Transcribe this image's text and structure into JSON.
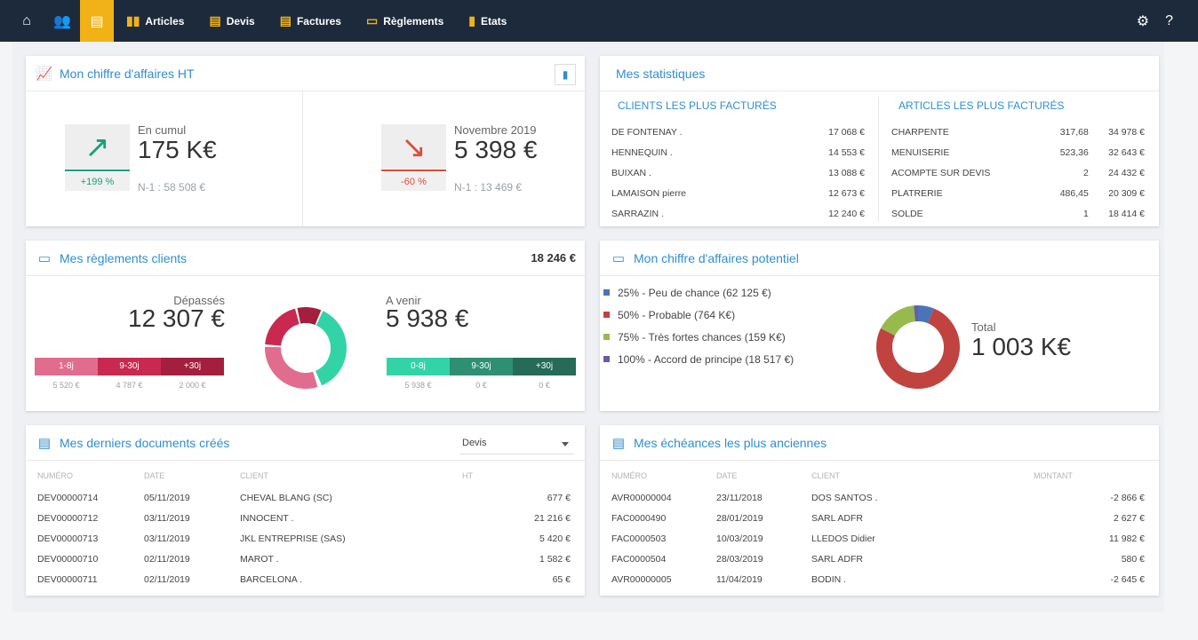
{
  "nav": {
    "articles": "Articles",
    "devis": "Devis",
    "factures": "Factures",
    "reglements": "Règlements",
    "etats": "Etats"
  },
  "ca": {
    "title": "Mon chiffre d'affaires HT",
    "left": {
      "label": "En cumul",
      "value": "175 K€",
      "pct": "+199 %",
      "n1": "N-1 : 58 508 €"
    },
    "right": {
      "label": "Novembre 2019",
      "value": "5 398 €",
      "pct": "-60 %",
      "n1": "N-1 : 13 469 €"
    },
    "accent_up": "#1aa07a",
    "accent_down": "#e04b3a"
  },
  "stats": {
    "title": "Mes statistiques",
    "clients_title": "CLIENTS LES PLUS FACTURÉS",
    "articles_title": "ARTICLES LES PLUS FACTURÉS",
    "clients": [
      [
        "DE FONTENAY .",
        "17 068 €"
      ],
      [
        "HENNEQUIN .",
        "14 553 €"
      ],
      [
        "BUIXAN .",
        "13 088 €"
      ],
      [
        "LAMAISON pierre",
        "12 673 €"
      ],
      [
        "SARRAZIN .",
        "12 240 €"
      ]
    ],
    "articles": [
      [
        "CHARPENTE",
        "317,68",
        "34 978 €"
      ],
      [
        "MENUISERIE",
        "523,36",
        "32 643 €"
      ],
      [
        "ACOMPTE SUR DEVIS",
        "2",
        "24 432 €"
      ],
      [
        "PLATRERIE",
        "486,45",
        "20 309 €"
      ],
      [
        "SOLDE",
        "1",
        "18 414 €"
      ]
    ]
  },
  "reg": {
    "title": "Mes règlements clients",
    "total": "18 246 €",
    "depasses_label": "Dépassés",
    "depasses_value": "12 307 €",
    "avenir_label": "A venir",
    "avenir_value": "5 938 €",
    "dep_seg": [
      "1-8j",
      "9-30j",
      "+30j"
    ],
    "dep_vals": [
      "5 520 €",
      "4 787 €",
      "2 000 €"
    ],
    "av_seg": [
      "0-8j",
      "9-30j",
      "+30j"
    ],
    "av_vals": [
      "5 938 €",
      "0 €",
      "0 €"
    ]
  },
  "pot": {
    "title": "Mon chiffre d'affaires potentiel",
    "total_label": "Total",
    "total_value": "1 003 K€",
    "legend": [
      {
        "text": "25% - Peu de chance (62 125 €)",
        "color": "#4a74b8",
        "value": 62125
      },
      {
        "text": "50% - Probable (764 K€)",
        "color": "#c0433f",
        "value": 764000
      },
      {
        "text": "75% - Très fortes chances (159 K€)",
        "color": "#96bb4c",
        "value": 159000
      },
      {
        "text": "100% - Accord de principe (18 517 €)",
        "color": "#6c5aa6",
        "value": 18517
      }
    ]
  },
  "docs": {
    "title": "Mes derniers documents créés",
    "select": "Devis",
    "cols": [
      "NUMÉRO",
      "DATE",
      "CLIENT",
      "HT"
    ],
    "rows": [
      [
        "DEV00000714",
        "05/11/2019",
        "CHEVAL BLANG (SC)",
        "677 €"
      ],
      [
        "DEV00000712",
        "03/11/2019",
        "INNOCENT .",
        "21 216 €"
      ],
      [
        "DEV00000713",
        "03/11/2019",
        "JKL ENTREPRISE (SAS)",
        "5 420 €"
      ],
      [
        "DEV00000710",
        "02/11/2019",
        "MAROT .",
        "1 582 €"
      ],
      [
        "DEV00000711",
        "02/11/2019",
        "BARCELONA .",
        "65 €"
      ]
    ]
  },
  "ech": {
    "title": "Mes échéances les plus anciennes",
    "cols": [
      "NUMÉRO",
      "DATE",
      "CLIENT",
      "MONTANT"
    ],
    "rows": [
      [
        "AVR00000004",
        "23/11/2018",
        "DOS SANTOS .",
        "-2 866 €"
      ],
      [
        "FAC0000490",
        "28/01/2019",
        "SARL ADFR",
        "2 627 €"
      ],
      [
        "FAC0000503",
        "10/03/2019",
        "LLEDOS Didier",
        "11 982 €"
      ],
      [
        "FAC0000504",
        "28/03/2019",
        "SARL ADFR",
        "580 €"
      ],
      [
        "AVR00000005",
        "11/04/2019",
        "BODIN .",
        "-2 645 €"
      ]
    ]
  }
}
